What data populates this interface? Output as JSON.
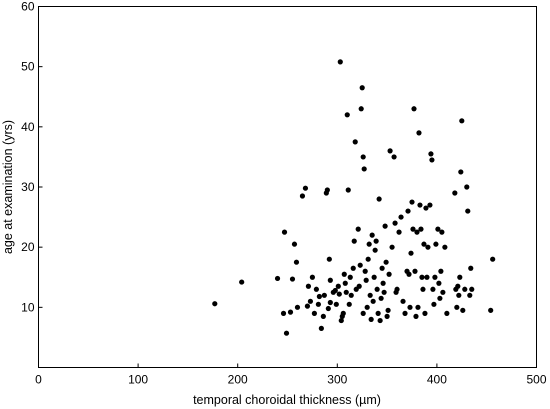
{
  "chart_data": {
    "type": "scatter",
    "xlabel": "temporal choroidal thickness (µm)",
    "ylabel": "age at examination (yrs)",
    "xlim": [
      0,
      500
    ],
    "ylim": [
      0,
      60
    ],
    "xticks": [
      0,
      100,
      200,
      300,
      400,
      500
    ],
    "yticks": [
      10,
      20,
      30,
      40,
      50,
      60
    ],
    "grid": false,
    "marker_color": "#000000",
    "points": [
      [
        177,
        10.6
      ],
      [
        204,
        14.2
      ],
      [
        240,
        14.8
      ],
      [
        246,
        9.0
      ],
      [
        247,
        22.5
      ],
      [
        249,
        5.7
      ],
      [
        253,
        9.2
      ],
      [
        255,
        14.7
      ],
      [
        257,
        20.5
      ],
      [
        259,
        17.5
      ],
      [
        260,
        10.0
      ],
      [
        265,
        28.5
      ],
      [
        268,
        29.8
      ],
      [
        270,
        10.2
      ],
      [
        271,
        13.5
      ],
      [
        273,
        11.0
      ],
      [
        275,
        15.0
      ],
      [
        277,
        9.0
      ],
      [
        279,
        13.0
      ],
      [
        281,
        10.5
      ],
      [
        282,
        11.8
      ],
      [
        284,
        6.5
      ],
      [
        286,
        8.5
      ],
      [
        287,
        12.0
      ],
      [
        289,
        29.0
      ],
      [
        290,
        29.5
      ],
      [
        291,
        9.8
      ],
      [
        292,
        18.0
      ],
      [
        293,
        10.8
      ],
      [
        293,
        14.5
      ],
      [
        296,
        12.5
      ],
      [
        298,
        12.8
      ],
      [
        299,
        10.5
      ],
      [
        301,
        13.5
      ],
      [
        302,
        12.2
      ],
      [
        303,
        50.8
      ],
      [
        304,
        7.8
      ],
      [
        305,
        8.5
      ],
      [
        306,
        9.0
      ],
      [
        307,
        15.5
      ],
      [
        308,
        14.0
      ],
      [
        309,
        12.5
      ],
      [
        310,
        42.0
      ],
      [
        311,
        29.5
      ],
      [
        312,
        10.5
      ],
      [
        313,
        15.0
      ],
      [
        314,
        12.0
      ],
      [
        316,
        16.5
      ],
      [
        317,
        21.0
      ],
      [
        318,
        37.5
      ],
      [
        319,
        13.0
      ],
      [
        321,
        23.0
      ],
      [
        322,
        13.5
      ],
      [
        323,
        17.0
      ],
      [
        324,
        43.0
      ],
      [
        325,
        46.5
      ],
      [
        326,
        35.0
      ],
      [
        326,
        9.0
      ],
      [
        327,
        33.0
      ],
      [
        328,
        16.0
      ],
      [
        329,
        14.5
      ],
      [
        330,
        10.0
      ],
      [
        331,
        18.0
      ],
      [
        332,
        20.5
      ],
      [
        333,
        12.0
      ],
      [
        334,
        8.0
      ],
      [
        335,
        22.0
      ],
      [
        336,
        11.0
      ],
      [
        337,
        15.0
      ],
      [
        338,
        19.5
      ],
      [
        339,
        21.0
      ],
      [
        340,
        13.0
      ],
      [
        341,
        9.0
      ],
      [
        342,
        28.0
      ],
      [
        343,
        7.8
      ],
      [
        344,
        11.5
      ],
      [
        345,
        16.5
      ],
      [
        346,
        14.0
      ],
      [
        347,
        12.5
      ],
      [
        348,
        23.5
      ],
      [
        349,
        17.5
      ],
      [
        350,
        8.5
      ],
      [
        351,
        9.5
      ],
      [
        352,
        15.5
      ],
      [
        353,
        36.0
      ],
      [
        355,
        20.0
      ],
      [
        357,
        35.0
      ],
      [
        358,
        24.0
      ],
      [
        359,
        12.5
      ],
      [
        360,
        13.0
      ],
      [
        362,
        22.5
      ],
      [
        364,
        25.0
      ],
      [
        366,
        11.0
      ],
      [
        368,
        9.0
      ],
      [
        370,
        16.0
      ],
      [
        371,
        26.0
      ],
      [
        372,
        15.5
      ],
      [
        373,
        10.0
      ],
      [
        374,
        19.0
      ],
      [
        375,
        27.5
      ],
      [
        376,
        23.0
      ],
      [
        377,
        43.0
      ],
      [
        378,
        16.0
      ],
      [
        379,
        8.5
      ],
      [
        380,
        22.5
      ],
      [
        381,
        10.0
      ],
      [
        382,
        39.0
      ],
      [
        383,
        27.0
      ],
      [
        384,
        23.0
      ],
      [
        385,
        15.0
      ],
      [
        386,
        13.0
      ],
      [
        387,
        20.5
      ],
      [
        388,
        9.0
      ],
      [
        389,
        26.5
      ],
      [
        390,
        15.0
      ],
      [
        391,
        20.0
      ],
      [
        393,
        27.0
      ],
      [
        394,
        35.5
      ],
      [
        395,
        34.5
      ],
      [
        396,
        13.0
      ],
      [
        397,
        10.5
      ],
      [
        398,
        15.0
      ],
      [
        399,
        20.5
      ],
      [
        401,
        23.0
      ],
      [
        402,
        14.0
      ],
      [
        403,
        11.5
      ],
      [
        404,
        16.0
      ],
      [
        405,
        22.5
      ],
      [
        406,
        12.5
      ],
      [
        408,
        20.0
      ],
      [
        410,
        9.0
      ],
      [
        418,
        29.0
      ],
      [
        419,
        13.0
      ],
      [
        420,
        10.0
      ],
      [
        421,
        13.5
      ],
      [
        422,
        12.0
      ],
      [
        423,
        15.0
      ],
      [
        424,
        32.5
      ],
      [
        425,
        41.0
      ],
      [
        426,
        9.5
      ],
      [
        428,
        13.0
      ],
      [
        430,
        30.0
      ],
      [
        431,
        26.0
      ],
      [
        433,
        12.0
      ],
      [
        434,
        16.5
      ],
      [
        435,
        13.0
      ],
      [
        454,
        9.5
      ],
      [
        456,
        18.0
      ]
    ]
  }
}
